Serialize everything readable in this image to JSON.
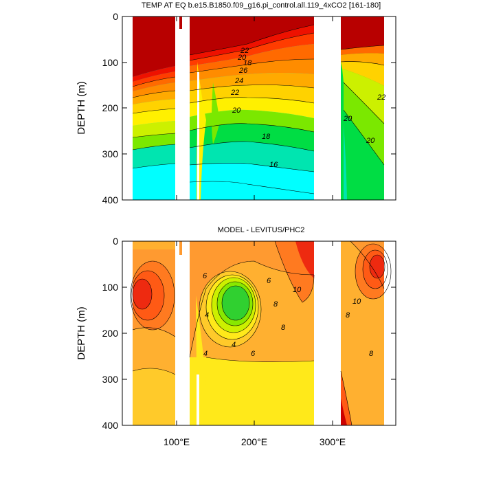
{
  "chart_data": [
    {
      "type": "contour",
      "title": "TEMP AT EQ b.e15.B1850.f09_g16.pi_control.all.119_4xCO2 [161-180]",
      "xlabel": "",
      "ylabel": "DEPTH (m)",
      "xlim": [
        30,
        380
      ],
      "ylim": [
        400,
        0
      ],
      "y_ticks": [
        "0",
        "100",
        "200",
        "300",
        "400"
      ],
      "contour_labels": [
        "22",
        "20",
        "18",
        "26",
        "24",
        "22",
        "20",
        "18",
        "16",
        "20",
        "22",
        "20"
      ],
      "contour_levels": [
        16,
        18,
        20,
        22,
        24,
        26,
        28
      ],
      "colors": [
        "#00ffff",
        "#00e5b0",
        "#00dd44",
        "#7be800",
        "#ccf000",
        "#fff000",
        "#ffd200",
        "#ffaa00",
        "#ff8c00",
        "#ff6a00",
        "#ff3c00",
        "#ee1100",
        "#b80000"
      ],
      "data_gaps_lon": [
        [
          98,
          120
        ],
        [
          278,
          316
        ],
        [
          370,
          380
        ]
      ],
      "notes": "Layers of warm water (>28) near surface deepening westward, thermocline at ~150-250 m"
    },
    {
      "type": "contour",
      "title": "MODEL - LEVITUS/PHC2",
      "xlabel": "",
      "ylabel": "DEPTH (m)",
      "xlim": [
        30,
        380
      ],
      "ylim": [
        400,
        0
      ],
      "y_ticks": [
        "0",
        "100",
        "200",
        "300",
        "400"
      ],
      "x_ticks": [
        "100°E",
        "200°E",
        "300°E"
      ],
      "contour_labels": [
        "6",
        "6",
        "10",
        "8",
        "10",
        "4",
        "4",
        "4",
        "6",
        "8",
        "8",
        "8"
      ],
      "contour_levels": [
        2,
        4,
        6,
        8,
        10,
        12
      ],
      "colors": [
        "#ffe91a",
        "#ffca2a",
        "#ffb030",
        "#ff9a30",
        "#ff7a20",
        "#ff5a15",
        "#ee2a10",
        "#cc0000",
        "#88e800",
        "#30d030"
      ],
      "notes": "Positive anomalies everywhere, maxima ~10-12 near 100 m in west Indian Ocean and east Pacific"
    }
  ]
}
